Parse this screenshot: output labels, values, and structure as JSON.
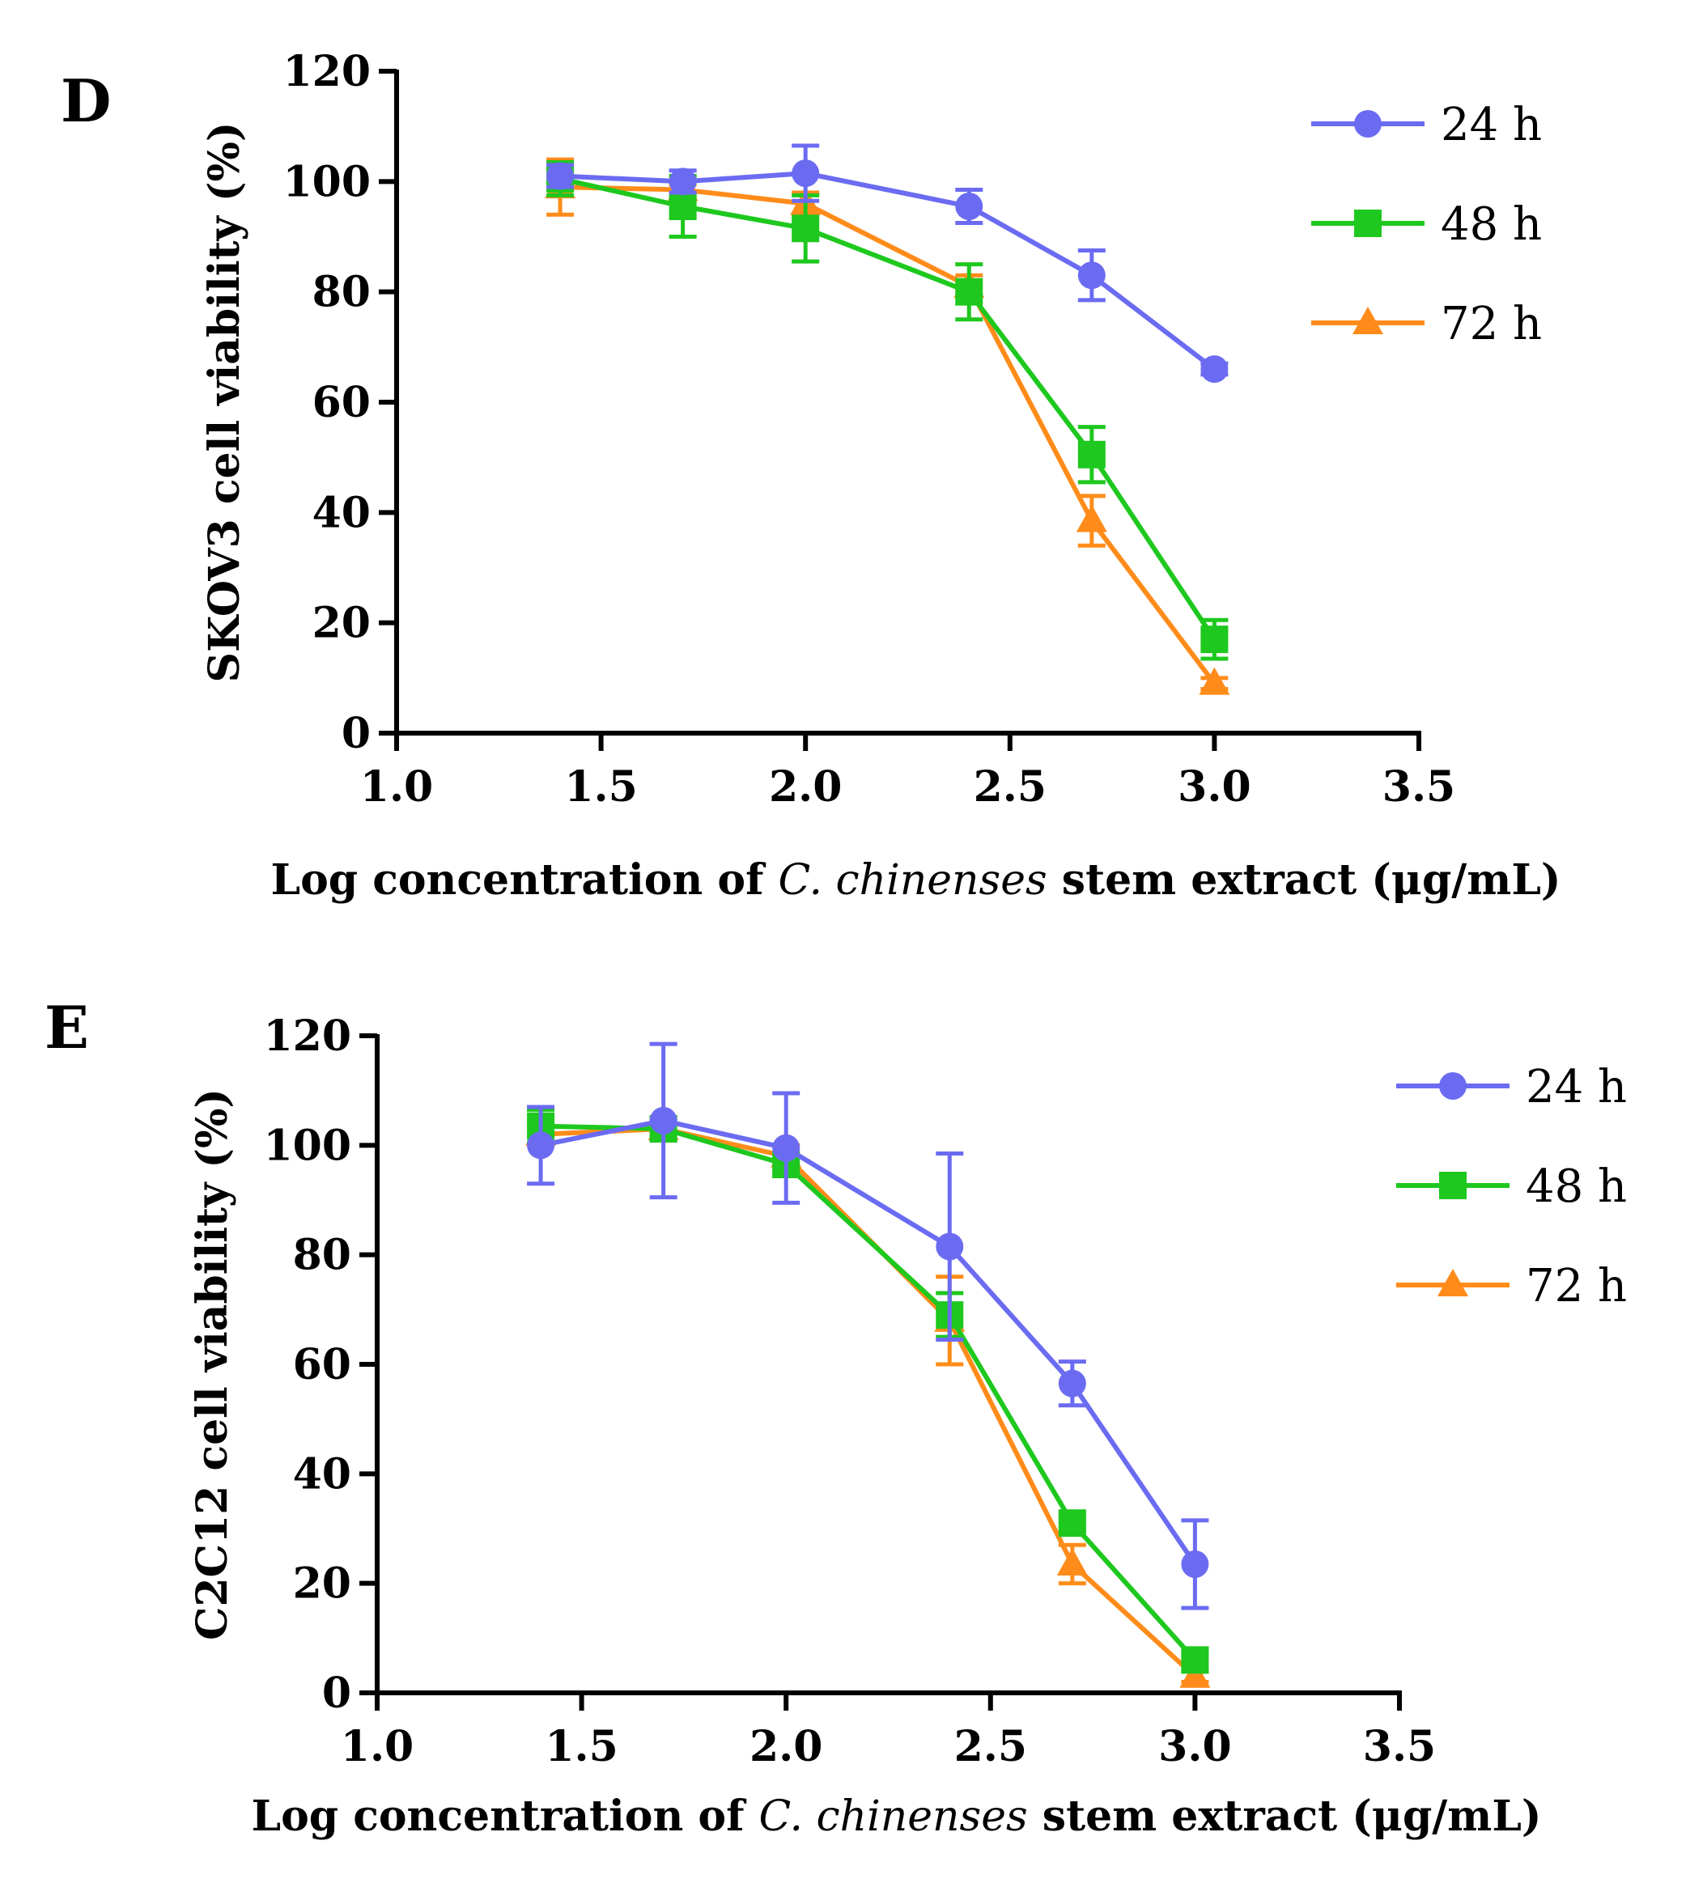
{
  "chart_data": [
    {
      "panel": "D",
      "type": "line",
      "title": "",
      "xlabel_parts": [
        {
          "text": "Log concentration of ",
          "italic": false
        },
        {
          "text": "C. chinenses",
          "italic": true
        },
        {
          "text": " stem extract (μg/mL)",
          "italic": false
        }
      ],
      "ylabel": "SKOV3 cell viability (%)",
      "xlim": [
        1.0,
        3.5
      ],
      "ylim": [
        0,
        120
      ],
      "xticks": [
        "1.0",
        "1.5",
        "2.0",
        "2.5",
        "3.0",
        "3.5"
      ],
      "yticks": [
        "0",
        "20",
        "40",
        "60",
        "80",
        "100",
        "120"
      ],
      "grid": false,
      "legend_position": "top-right",
      "x": [
        1.4,
        1.7,
        2.0,
        2.4,
        2.7,
        3.0
      ],
      "series": [
        {
          "name": "24 h",
          "color": "#6b6bf2",
          "marker": "circle",
          "values": [
            101,
            100,
            101.5,
            95.5,
            83,
            66
          ],
          "errors": [
            2,
            2,
            5,
            3,
            4.5,
            1
          ]
        },
        {
          "name": "48 h",
          "color": "#1ec81e",
          "marker": "square",
          "values": [
            100.5,
            95.5,
            91.5,
            80,
            50.5,
            17
          ],
          "errors": [
            3,
            5.5,
            6,
            5,
            5,
            3.5
          ]
        },
        {
          "name": "72 h",
          "color": "#ff8c1a",
          "marker": "triangle",
          "values": [
            99,
            98.5,
            96,
            81,
            38.5,
            9
          ],
          "errors": [
            5,
            1,
            2,
            2,
            4.5,
            1
          ]
        }
      ]
    },
    {
      "panel": "E",
      "type": "line",
      "title": "",
      "xlabel_parts": [
        {
          "text": "Log concentration of ",
          "italic": false
        },
        {
          "text": "C. chinenses",
          "italic": true
        },
        {
          "text": " stem extract (μg/mL)",
          "italic": false
        }
      ],
      "ylabel": "C2C12 cell viability (%)",
      "xlim": [
        1.0,
        3.5
      ],
      "ylim": [
        0,
        120
      ],
      "xticks": [
        "1.0",
        "1.5",
        "2.0",
        "2.5",
        "3.0",
        "3.5"
      ],
      "yticks": [
        "0",
        "20",
        "40",
        "60",
        "80",
        "100",
        "120"
      ],
      "grid": false,
      "legend_position": "top-right",
      "x": [
        1.4,
        1.7,
        2.0,
        2.4,
        2.7,
        3.0
      ],
      "series": [
        {
          "name": "24 h",
          "color": "#6b6bf2",
          "marker": "circle",
          "values": [
            100,
            104.5,
            99.5,
            81.5,
            56.5,
            23.5
          ],
          "errors": [
            7,
            14,
            10,
            17,
            4,
            8
          ]
        },
        {
          "name": "48 h",
          "color": "#1ec81e",
          "marker": "square",
          "values": [
            103.5,
            103,
            96.5,
            69,
            31,
            6
          ],
          "errors": [
            3,
            2,
            2,
            4,
            1,
            2
          ]
        },
        {
          "name": "72 h",
          "color": "#ff8c1a",
          "marker": "triangle",
          "values": [
            102,
            103,
            98,
            68,
            23.5,
            3
          ],
          "errors": [
            2,
            1,
            2,
            8,
            3.5,
            1
          ]
        }
      ]
    }
  ]
}
